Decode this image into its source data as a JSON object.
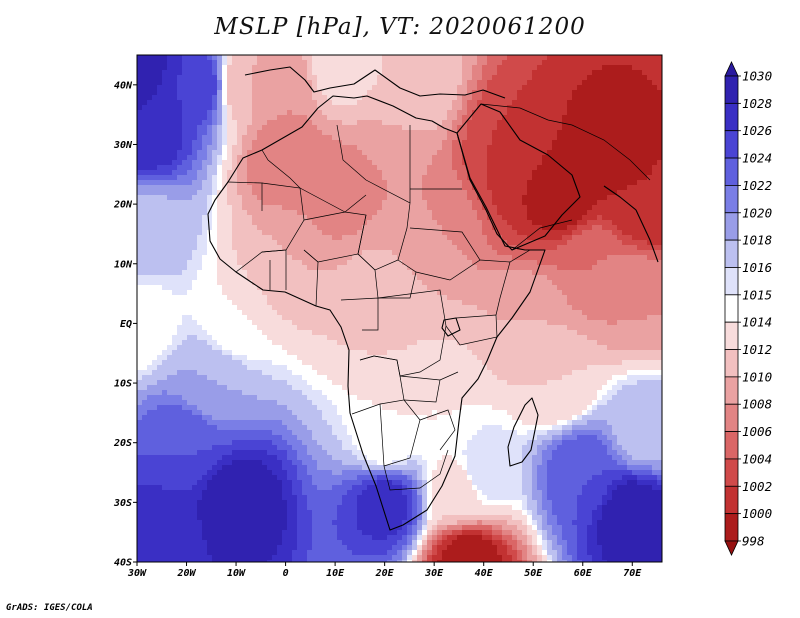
{
  "title": "MSLP [hPa], VT: 2020061200",
  "credit": "GrADS: IGES/COLA",
  "map": {
    "projection": "latlon",
    "lon_range": [
      -30,
      76
    ],
    "lat_range": [
      -40,
      45
    ],
    "lat_labels": [
      {
        "lat": 40,
        "text": "40N"
      },
      {
        "lat": 30,
        "text": "30N"
      },
      {
        "lat": 20,
        "text": "20N"
      },
      {
        "lat": 10,
        "text": "10N"
      },
      {
        "lat": 0,
        "text": "EQ"
      },
      {
        "lat": -10,
        "text": "10S"
      },
      {
        "lat": -20,
        "text": "20S"
      },
      {
        "lat": -30,
        "text": "30S"
      },
      {
        "lat": -40,
        "text": "40S"
      }
    ],
    "lon_labels": [
      {
        "lon": -30,
        "text": "30W"
      },
      {
        "lon": -20,
        "text": "20W"
      },
      {
        "lon": -10,
        "text": "10W"
      },
      {
        "lon": 0,
        "text": "0"
      },
      {
        "lon": 10,
        "text": "10E"
      },
      {
        "lon": 20,
        "text": "20E"
      },
      {
        "lon": 30,
        "text": "30E"
      },
      {
        "lon": 40,
        "text": "40E"
      },
      {
        "lon": 50,
        "text": "50E"
      },
      {
        "lon": 60,
        "text": "60E"
      },
      {
        "lon": 70,
        "text": "70E"
      }
    ]
  },
  "colorbar": {
    "levels": [
      "1030",
      "1028",
      "1026",
      "1024",
      "1022",
      "1020",
      "1018",
      "1016",
      "1015",
      "1014",
      "1012",
      "1010",
      "1008",
      "1006",
      "1004",
      "1002",
      "1000",
      "998"
    ],
    "colors": [
      "#2a1aa0",
      "#3022b0",
      "#3a2fc4",
      "#4a44d4",
      "#5f60de",
      "#7a7ee6",
      "#999de8",
      "#bcc0f0",
      "#dfe2fa",
      "#ffffff",
      "#f8dcdc",
      "#f2c0c0",
      "#eaa2a2",
      "#e28484",
      "#da6666",
      "#d04a4a",
      "#c23232",
      "#ac1c1c",
      "#961010"
    ]
  },
  "pressure_centers": [
    {
      "lon": -30,
      "lat": 45,
      "value": 1030
    },
    {
      "lon": -18,
      "lat": 40,
      "value": 1026
    },
    {
      "lon": -28,
      "lat": 33,
      "value": 1028
    },
    {
      "lon": -28,
      "lat": 15,
      "value": 1017
    },
    {
      "lon": -30,
      "lat": 0,
      "value": 1014
    },
    {
      "lon": -8,
      "lat": 40,
      "value": 1010
    },
    {
      "lon": 0,
      "lat": 40,
      "value": 1008
    },
    {
      "lon": 10,
      "lat": 43,
      "value": 1013
    },
    {
      "lon": 26,
      "lat": 40,
      "value": 1012
    },
    {
      "lon": 0,
      "lat": 28,
      "value": 1006
    },
    {
      "lon": 10,
      "lat": 22,
      "value": 1007
    },
    {
      "lon": 22,
      "lat": 25,
      "value": 1008
    },
    {
      "lon": 30,
      "lat": 15,
      "value": 1008
    },
    {
      "lon": 45,
      "lat": 30,
      "value": 1002
    },
    {
      "lon": 50,
      "lat": 25,
      "value": 1000
    },
    {
      "lon": 56,
      "lat": 22,
      "value": 998
    },
    {
      "lon": 65,
      "lat": 30,
      "value": 999
    },
    {
      "lon": 72,
      "lat": 20,
      "value": 1000
    },
    {
      "lon": 62,
      "lat": 10,
      "value": 1006
    },
    {
      "lon": 70,
      "lat": 5,
      "value": 1008
    },
    {
      "lon": 50,
      "lat": 0,
      "value": 1010
    },
    {
      "lon": 0,
      "lat": 10,
      "value": 1010
    },
    {
      "lon": 20,
      "lat": 5,
      "value": 1011
    },
    {
      "lon": 25,
      "lat": -5,
      "value": 1012
    },
    {
      "lon": -10,
      "lat": 0,
      "value": 1014
    },
    {
      "lon": 20,
      "lat": -20,
      "value": 1014
    },
    {
      "lon": 30,
      "lat": -15,
      "value": 1014
    },
    {
      "lon": -15,
      "lat": -10,
      "value": 1018
    },
    {
      "lon": -20,
      "lat": -20,
      "value": 1024
    },
    {
      "lon": -10,
      "lat": -30,
      "value": 1030
    },
    {
      "lon": -25,
      "lat": -35,
      "value": 1027
    },
    {
      "lon": 20,
      "lat": -30,
      "value": 1027
    },
    {
      "lon": 35,
      "lat": -28,
      "value": 1013
    },
    {
      "lon": 40,
      "lat": -25,
      "value": 1016
    },
    {
      "lon": 37,
      "lat": -40,
      "value": 998
    },
    {
      "lon": 60,
      "lat": -25,
      "value": 1024
    },
    {
      "lon": 70,
      "lat": -32,
      "value": 1030
    },
    {
      "lon": 72,
      "lat": -18,
      "value": 1017
    },
    {
      "lon": 55,
      "lat": -10,
      "value": 1012
    }
  ]
}
